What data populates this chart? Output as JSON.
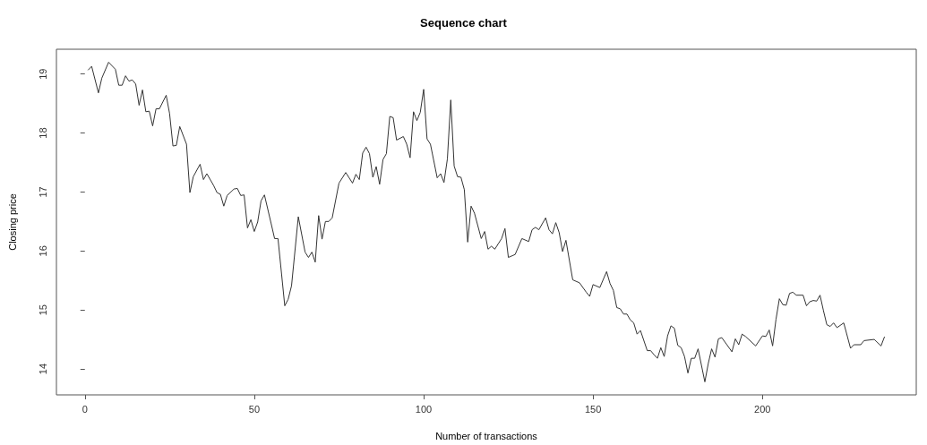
{
  "chart_data": {
    "type": "line",
    "title": "Sequence chart",
    "xlabel": "Number of transactions",
    "ylabel": "Closing price",
    "xlim": [
      -8.4,
      245.4
    ],
    "xticks": [
      0,
      50,
      100,
      150,
      200
    ],
    "ylim": [
      13.56,
      19.42
    ],
    "yticks": [
      14,
      15,
      16,
      17,
      18,
      19
    ],
    "grid": false,
    "marker": "none",
    "line_style": "solid",
    "series": [
      {
        "color": "#333333",
        "x": [
          1,
          2,
          4,
          5,
          7,
          9,
          10,
          11,
          12,
          13,
          14,
          15,
          16,
          17,
          18,
          19,
          20,
          21,
          22,
          24,
          25,
          26,
          27,
          28,
          30,
          31,
          32,
          34,
          35,
          36,
          38,
          39,
          40,
          41,
          42,
          44,
          45,
          46,
          47,
          48,
          49,
          50,
          51,
          52,
          53,
          55,
          56,
          57,
          59,
          60,
          61,
          63,
          65,
          66,
          67,
          68,
          69,
          70,
          71,
          72,
          73,
          75,
          77,
          79,
          80,
          81,
          82,
          83,
          84,
          85,
          86,
          87,
          88,
          89,
          90,
          91,
          92,
          94,
          95,
          96,
          97,
          98,
          99,
          100,
          101,
          102,
          104,
          105,
          106,
          107,
          108,
          109,
          110,
          111,
          112,
          113,
          114,
          115,
          117,
          118,
          119,
          120,
          121,
          123,
          124,
          125,
          127,
          129,
          131,
          132,
          133,
          134,
          136,
          137,
          138,
          139,
          140,
          141,
          142,
          144,
          146,
          148,
          149,
          150,
          152,
          154,
          155,
          156,
          157,
          158,
          159,
          160,
          161,
          162,
          163,
          164,
          166,
          167,
          168,
          169,
          170,
          171,
          172,
          173,
          174,
          175,
          176,
          177,
          178,
          179,
          180,
          181,
          183,
          184,
          185,
          186,
          187,
          188,
          191,
          192,
          193,
          194,
          195,
          198,
          200,
          201,
          202,
          203,
          204,
          205,
          206,
          207,
          208,
          209,
          210,
          212,
          213,
          214,
          215,
          216,
          217,
          218,
          219,
          220,
          221,
          222,
          224,
          226,
          227,
          229,
          230,
          233,
          235,
          236
        ],
        "values": [
          19.07,
          19.13,
          18.68,
          18.93,
          19.2,
          19.08,
          18.81,
          18.81,
          18.97,
          18.88,
          18.9,
          18.83,
          18.47,
          18.73,
          18.36,
          18.37,
          18.12,
          18.41,
          18.41,
          18.64,
          18.33,
          17.78,
          17.79,
          18.11,
          17.81,
          16.99,
          17.26,
          17.47,
          17.21,
          17.31,
          17.11,
          16.99,
          16.96,
          16.76,
          16.94,
          17.05,
          17.06,
          16.94,
          16.95,
          16.39,
          16.53,
          16.33,
          16.49,
          16.85,
          16.95,
          16.46,
          16.21,
          16.21,
          15.07,
          15.18,
          15.41,
          16.58,
          15.98,
          15.89,
          15.98,
          15.81,
          16.6,
          16.2,
          16.5,
          16.5,
          16.56,
          17.15,
          17.33,
          17.15,
          17.3,
          17.21,
          17.66,
          17.76,
          17.65,
          17.25,
          17.43,
          17.13,
          17.55,
          17.65,
          18.28,
          18.26,
          17.88,
          17.94,
          17.81,
          17.58,
          18.36,
          18.21,
          18.35,
          18.74,
          17.9,
          17.81,
          17.24,
          17.31,
          17.16,
          17.56,
          18.56,
          17.44,
          17.26,
          17.25,
          17.04,
          16.15,
          16.76,
          16.64,
          16.21,
          16.33,
          16.03,
          16.08,
          16.03,
          16.21,
          16.38,
          15.89,
          15.94,
          16.21,
          16.16,
          16.36,
          16.4,
          16.36,
          16.56,
          16.36,
          16.29,
          16.48,
          16.31,
          15.99,
          16.18,
          15.51,
          15.46,
          15.3,
          15.23,
          15.43,
          15.38,
          15.65,
          15.45,
          15.33,
          15.04,
          15.02,
          14.93,
          14.93,
          14.83,
          14.78,
          14.59,
          14.65,
          14.31,
          14.31,
          14.24,
          14.18,
          14.36,
          14.21,
          14.56,
          14.73,
          14.69,
          14.4,
          14.36,
          14.21,
          13.93,
          14.18,
          14.18,
          14.34,
          13.78,
          14.09,
          14.34,
          14.2,
          14.51,
          14.53,
          14.29,
          14.51,
          14.41,
          14.59,
          14.55,
          14.39,
          14.56,
          14.55,
          14.66,
          14.39,
          14.84,
          15.19,
          15.09,
          15.08,
          15.28,
          15.3,
          15.25,
          15.25,
          15.07,
          15.14,
          15.16,
          15.15,
          15.25,
          14.99,
          14.75,
          14.72,
          14.78,
          14.7,
          14.78,
          14.35,
          14.41,
          14.41,
          14.48,
          14.5,
          14.39,
          14.54
        ]
      }
    ]
  }
}
